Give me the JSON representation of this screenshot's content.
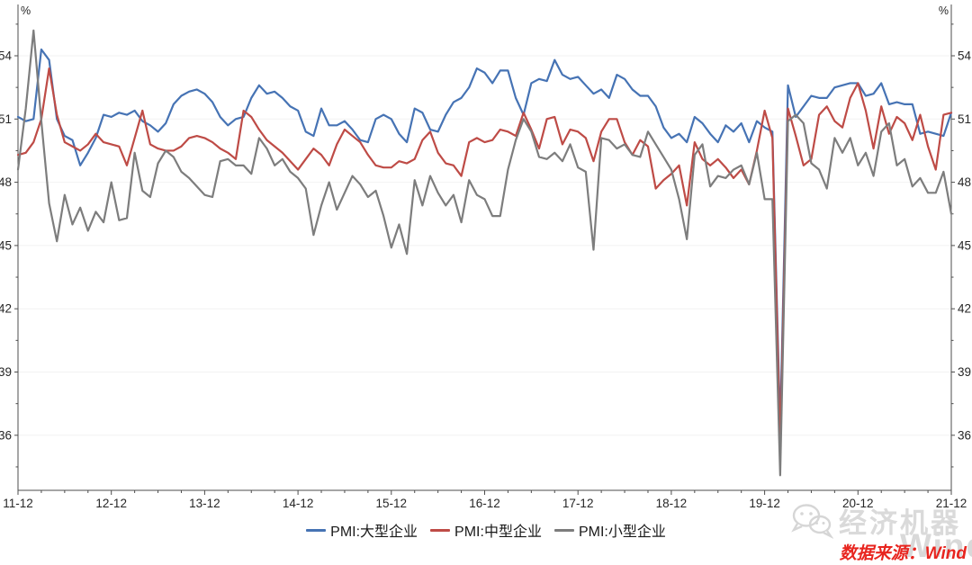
{
  "chart": {
    "unit_left": "%",
    "unit_right": "%",
    "axis_color": "#4d4d4d",
    "label_color": "#262626",
    "grid_color": "#f2f2f2"
  },
  "watermark": {
    "brand_text": "经济机器",
    "background_text": "Wind"
  },
  "source": {
    "text": "数据来源：Wind"
  },
  "chart_data": {
    "type": "line",
    "title": "",
    "xlabel": "",
    "ylabel": "%",
    "frequency": "monthly",
    "x_start": "2011-12",
    "x_end": "2021-12",
    "x_major_tick_labels": [
      "11-12",
      "12-12",
      "13-12",
      "14-12",
      "15-12",
      "16-12",
      "17-12",
      "18-12",
      "19-12",
      "20-12",
      "21-12"
    ],
    "y_ticks": [
      36,
      39,
      42,
      45,
      48,
      51,
      54
    ],
    "ylim": [
      33.4,
      56.4
    ],
    "grid": "horizontal-faint",
    "legend_position": "bottom-center",
    "series": [
      {
        "name": "PMI:大型企业",
        "color": "#4673B4",
        "values": [
          51.1,
          50.9,
          51.0,
          54.3,
          53.8,
          51.0,
          50.2,
          50.0,
          48.8,
          49.4,
          50.1,
          51.2,
          51.1,
          51.3,
          51.2,
          51.4,
          50.9,
          50.7,
          50.4,
          50.8,
          51.7,
          52.1,
          52.3,
          52.4,
          52.2,
          51.8,
          51.1,
          50.7,
          51.0,
          51.1,
          52.0,
          52.6,
          52.2,
          52.3,
          52.0,
          51.6,
          51.4,
          50.4,
          50.2,
          51.5,
          50.7,
          50.7,
          50.9,
          50.5,
          50.0,
          49.9,
          51.0,
          51.2,
          51.0,
          50.3,
          49.9,
          51.5,
          51.3,
          50.5,
          50.4,
          51.2,
          51.8,
          52.0,
          52.5,
          53.4,
          53.2,
          52.7,
          53.3,
          53.3,
          52.0,
          51.2,
          52.7,
          52.9,
          52.8,
          53.8,
          53.1,
          52.9,
          53.0,
          52.6,
          52.2,
          52.4,
          52.0,
          53.1,
          52.9,
          52.4,
          52.1,
          52.1,
          51.6,
          50.6,
          50.1,
          50.3,
          49.9,
          51.1,
          50.8,
          50.3,
          49.9,
          50.7,
          50.4,
          50.8,
          49.9,
          50.9,
          50.6,
          50.4,
          36.3,
          52.6,
          51.1,
          51.6,
          52.1,
          52.0,
          52.0,
          52.5,
          52.6,
          52.7,
          52.7,
          52.1,
          52.2,
          52.7,
          51.7,
          51.8,
          51.7,
          51.7,
          50.3,
          50.4,
          50.3,
          50.2,
          51.3
        ]
      },
      {
        "name": "PMI:中型企业",
        "color": "#BE4B46",
        "values": [
          49.3,
          49.4,
          49.9,
          51.0,
          53.4,
          51.2,
          49.9,
          49.7,
          49.5,
          49.8,
          50.3,
          49.9,
          49.8,
          49.7,
          48.8,
          50.1,
          51.4,
          49.8,
          49.6,
          49.5,
          49.5,
          49.7,
          50.1,
          50.2,
          50.1,
          49.9,
          49.6,
          49.4,
          49.1,
          51.4,
          51.1,
          50.5,
          50.0,
          49.7,
          49.4,
          49.0,
          48.6,
          49.1,
          49.6,
          49.3,
          48.8,
          49.8,
          50.5,
          50.2,
          49.9,
          49.3,
          48.8,
          48.7,
          48.7,
          49.0,
          48.9,
          49.1,
          50.0,
          50.4,
          49.4,
          48.9,
          48.8,
          48.3,
          49.9,
          50.1,
          49.9,
          50.0,
          50.5,
          50.4,
          50.2,
          51.3,
          50.5,
          49.6,
          51.0,
          51.1,
          49.8,
          50.5,
          50.4,
          50.1,
          49.0,
          50.4,
          51.0,
          51.0,
          49.9,
          49.3,
          50.0,
          49.7,
          47.7,
          48.1,
          48.4,
          48.8,
          46.9,
          49.9,
          49.1,
          48.8,
          49.1,
          48.7,
          48.2,
          48.6,
          47.9,
          49.5,
          51.4,
          50.1,
          35.5,
          51.5,
          50.2,
          48.8,
          49.1,
          51.2,
          51.6,
          50.9,
          50.6,
          52.0,
          52.7,
          51.4,
          49.6,
          51.6,
          50.3,
          51.1,
          50.8,
          50.0,
          51.2,
          49.7,
          48.6,
          51.2,
          51.3
        ]
      },
      {
        "name": "PMI:小型企业",
        "color": "#7D7D7D",
        "values": [
          48.6,
          51.5,
          55.2,
          50.9,
          47.0,
          45.2,
          47.4,
          46.0,
          46.8,
          45.7,
          46.6,
          46.1,
          48.0,
          46.2,
          46.3,
          49.4,
          47.6,
          47.3,
          48.9,
          49.5,
          49.2,
          48.5,
          48.2,
          47.8,
          47.4,
          47.3,
          49.0,
          49.1,
          48.8,
          48.8,
          48.4,
          50.1,
          49.6,
          48.8,
          49.1,
          48.5,
          48.2,
          47.7,
          45.5,
          46.9,
          48.0,
          46.7,
          47.5,
          48.3,
          47.9,
          47.3,
          47.6,
          46.4,
          44.9,
          46.0,
          44.6,
          48.1,
          46.9,
          48.3,
          47.5,
          46.9,
          47.4,
          46.1,
          48.1,
          47.4,
          47.2,
          46.4,
          46.4,
          48.6,
          50.0,
          51.0,
          50.4,
          49.2,
          49.1,
          49.4,
          49.0,
          49.8,
          48.7,
          48.5,
          44.8,
          50.1,
          50.0,
          49.6,
          49.8,
          49.3,
          49.2,
          50.4,
          49.8,
          49.2,
          48.6,
          47.2,
          45.3,
          49.3,
          49.8,
          47.8,
          48.3,
          48.2,
          48.6,
          48.8,
          47.9,
          49.4,
          47.2,
          47.2,
          34.1,
          50.9,
          51.2,
          50.8,
          48.9,
          48.6,
          47.7,
          50.1,
          49.4,
          50.1,
          48.8,
          49.4,
          48.3,
          50.4,
          50.8,
          48.8,
          49.1,
          47.8,
          48.2,
          47.5,
          47.5,
          48.5,
          46.5
        ]
      }
    ]
  }
}
